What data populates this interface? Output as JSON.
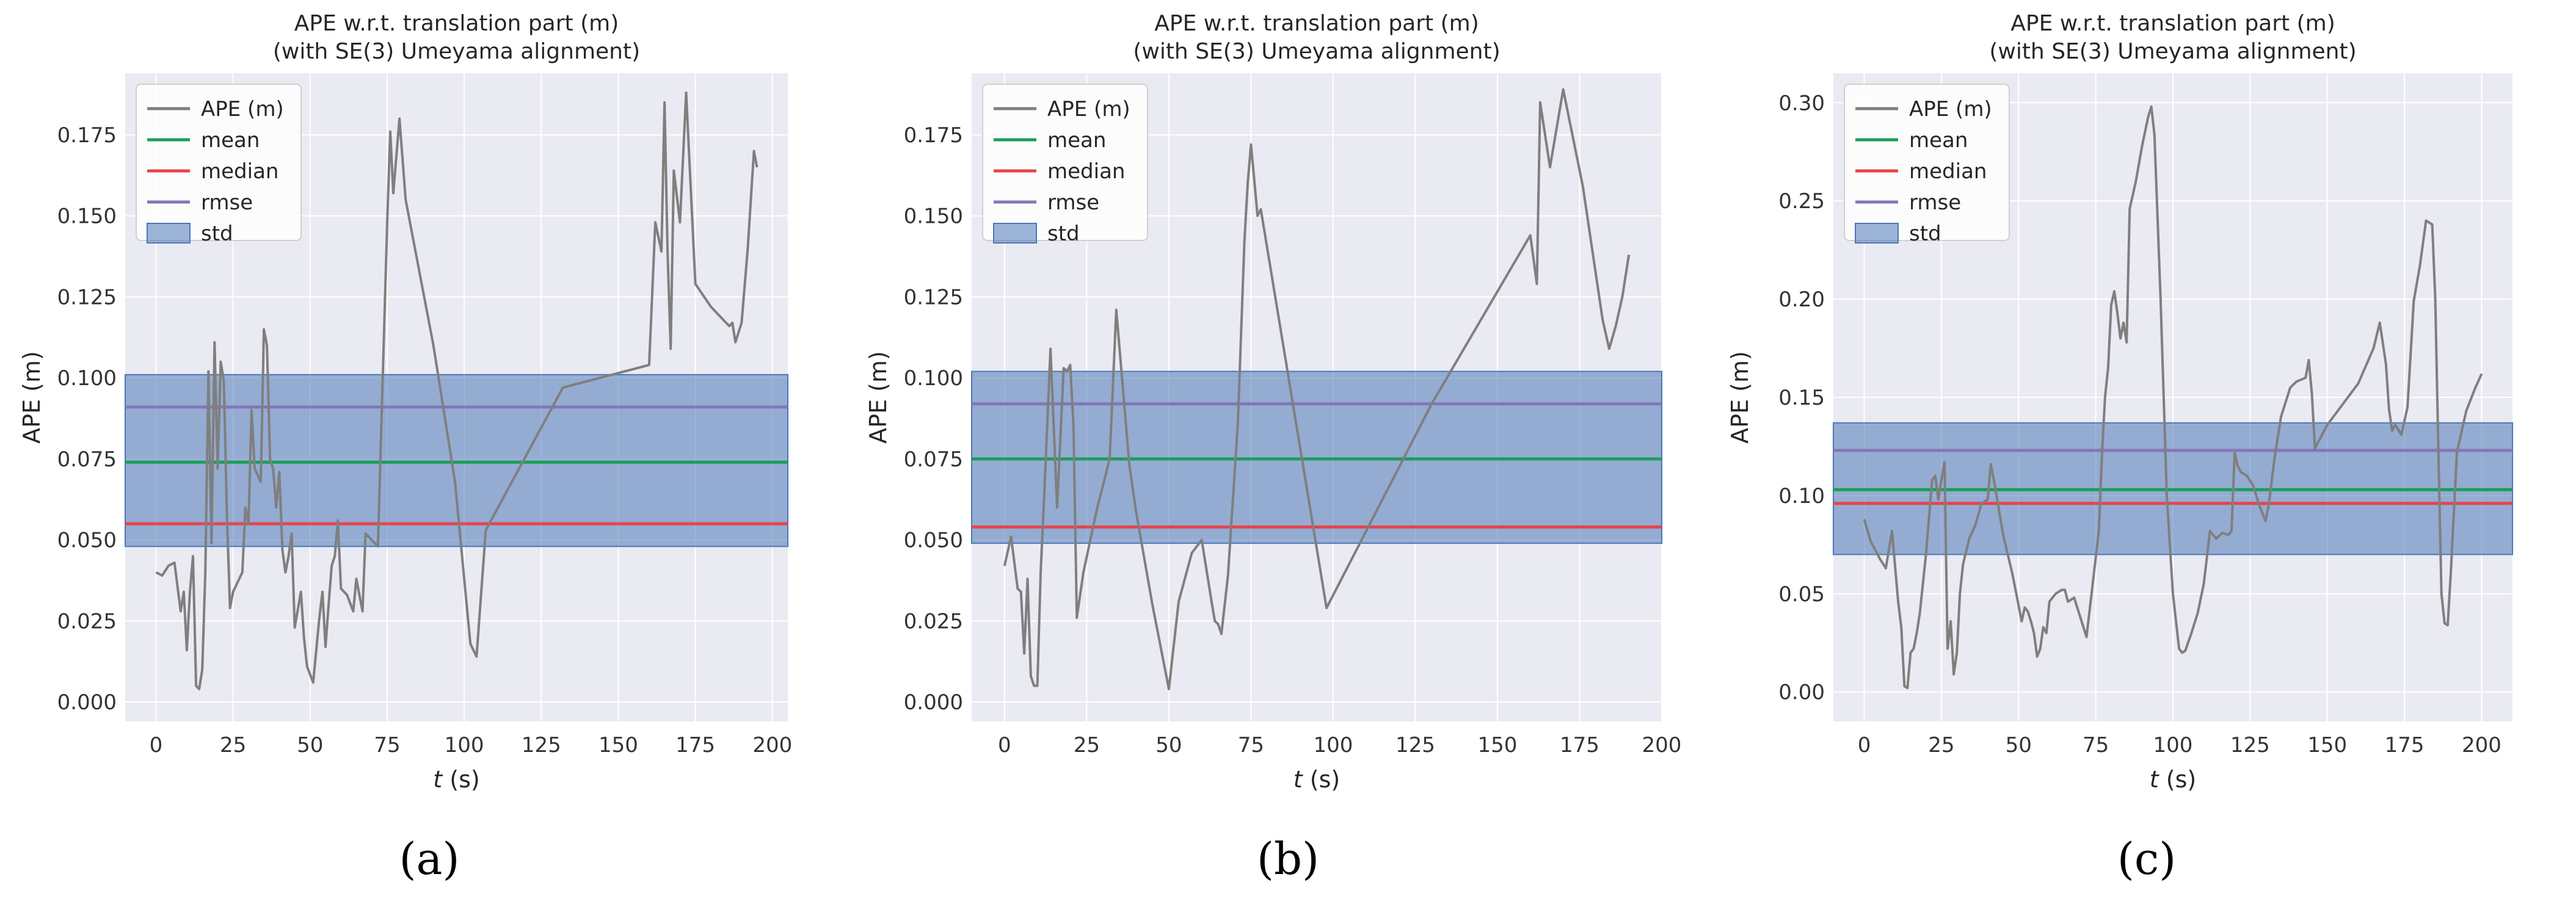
{
  "chart_data": [
    {
      "type": "line",
      "panel_label": "(a)",
      "title": "APE w.r.t. translation part (m)",
      "subtitle": "(with SE(3) Umeyama alignment)",
      "xlabel_italic": "t",
      "xlabel_unit": " (s)",
      "ylabel": "APE (m)",
      "xlim": [
        -10,
        205
      ],
      "ylim": [
        -0.006,
        0.194
      ],
      "xticks": [
        0,
        25,
        50,
        75,
        100,
        125,
        150,
        175,
        200
      ],
      "yticks": [
        0.0,
        0.025,
        0.05,
        0.075,
        0.1,
        0.125,
        0.15,
        0.175
      ],
      "ytick_labels": [
        "0.000",
        "0.025",
        "0.050",
        "0.075",
        "0.100",
        "0.125",
        "0.150",
        "0.175"
      ],
      "legend": [
        "APE (m)",
        "mean",
        "median",
        "rmse",
        "std"
      ],
      "stats": {
        "mean": 0.074,
        "median": 0.055,
        "rmse": 0.091,
        "std_low": 0.048,
        "std_high": 0.101
      },
      "series": [
        {
          "name": "APE (m)",
          "x": [
            0,
            2,
            4,
            6,
            8,
            9,
            10,
            11,
            12,
            13,
            14,
            15,
            16,
            17,
            18,
            19,
            20,
            21,
            22,
            23,
            24,
            25,
            28,
            29,
            30,
            31,
            32,
            34,
            35,
            36,
            37,
            38,
            39,
            40,
            41,
            42,
            43,
            44,
            45,
            47,
            48,
            49,
            51,
            53,
            54,
            55,
            56,
            57,
            58,
            59,
            60,
            62,
            64,
            65,
            66,
            67,
            68,
            72,
            75,
            76,
            77,
            79,
            81,
            90,
            97,
            102,
            104,
            107,
            132,
            160,
            162,
            164,
            165,
            166,
            167,
            168,
            170,
            172,
            175,
            180,
            186,
            187,
            188,
            190,
            192,
            194,
            195
          ],
          "y": [
            0.04,
            0.039,
            0.042,
            0.043,
            0.028,
            0.034,
            0.016,
            0.034,
            0.045,
            0.005,
            0.004,
            0.01,
            0.04,
            0.102,
            0.049,
            0.111,
            0.072,
            0.105,
            0.099,
            0.058,
            0.029,
            0.034,
            0.04,
            0.06,
            0.055,
            0.09,
            0.072,
            0.068,
            0.115,
            0.11,
            0.075,
            0.072,
            0.06,
            0.071,
            0.047,
            0.04,
            0.045,
            0.052,
            0.023,
            0.034,
            0.02,
            0.011,
            0.006,
            0.026,
            0.034,
            0.017,
            0.03,
            0.042,
            0.045,
            0.056,
            0.035,
            0.033,
            0.028,
            0.038,
            0.033,
            0.028,
            0.052,
            0.048,
            0.148,
            0.176,
            0.157,
            0.18,
            0.155,
            0.11,
            0.068,
            0.018,
            0.014,
            0.053,
            0.097,
            0.104,
            0.148,
            0.139,
            0.185,
            0.138,
            0.109,
            0.164,
            0.148,
            0.188,
            0.129,
            0.122,
            0.116,
            0.117,
            0.111,
            0.117,
            0.14,
            0.17,
            0.165
          ]
        }
      ]
    },
    {
      "type": "line",
      "panel_label": "(b)",
      "title": "APE w.r.t. translation part (m)",
      "subtitle": "(with SE(3) Umeyama alignment)",
      "xlabel_italic": "t",
      "xlabel_unit": " (s)",
      "ylabel": "APE (m)",
      "xlim": [
        -10,
        200
      ],
      "ylim": [
        -0.006,
        0.194
      ],
      "xticks": [
        0,
        25,
        50,
        75,
        100,
        125,
        150,
        175,
        200
      ],
      "yticks": [
        0.0,
        0.025,
        0.05,
        0.075,
        0.1,
        0.125,
        0.15,
        0.175
      ],
      "ytick_labels": [
        "0.000",
        "0.025",
        "0.050",
        "0.075",
        "0.100",
        "0.125",
        "0.150",
        "0.175"
      ],
      "legend": [
        "APE (m)",
        "mean",
        "median",
        "rmse",
        "std"
      ],
      "stats": {
        "mean": 0.075,
        "median": 0.054,
        "rmse": 0.092,
        "std_low": 0.049,
        "std_high": 0.102
      },
      "series": [
        {
          "name": "APE (m)",
          "x": [
            0,
            2,
            4,
            5,
            6,
            7,
            8,
            9,
            10,
            11,
            12,
            14,
            16,
            18,
            19,
            20,
            21,
            22,
            24,
            28,
            32,
            34,
            38,
            40,
            45,
            50,
            53,
            57,
            60,
            63,
            64,
            65,
            66,
            68,
            71,
            73,
            74,
            75,
            76,
            77,
            78,
            98,
            130,
            160,
            162,
            163,
            166,
            170,
            176,
            182,
            184,
            186,
            188,
            190
          ],
          "y": [
            0.042,
            0.051,
            0.035,
            0.034,
            0.015,
            0.038,
            0.008,
            0.005,
            0.005,
            0.04,
            0.062,
            0.109,
            0.06,
            0.103,
            0.102,
            0.104,
            0.085,
            0.026,
            0.04,
            0.059,
            0.075,
            0.121,
            0.073,
            0.059,
            0.03,
            0.004,
            0.031,
            0.046,
            0.05,
            0.031,
            0.025,
            0.024,
            0.021,
            0.039,
            0.086,
            0.142,
            0.16,
            0.172,
            0.161,
            0.15,
            0.152,
            0.029,
            0.092,
            0.144,
            0.129,
            0.185,
            0.165,
            0.189,
            0.159,
            0.118,
            0.109,
            0.116,
            0.125,
            0.138
          ]
        }
      ]
    },
    {
      "type": "line",
      "panel_label": "(c)",
      "title": "APE w.r.t. translation part (m)",
      "subtitle": "(with SE(3) Umeyama alignment)",
      "xlabel_italic": "t",
      "xlabel_unit": " (s)",
      "ylabel": "APE (m)",
      "xlim": [
        -10,
        210
      ],
      "ylim": [
        -0.015,
        0.315
      ],
      "xticks": [
        0,
        25,
        50,
        75,
        100,
        125,
        150,
        175,
        200
      ],
      "yticks": [
        0.0,
        0.05,
        0.1,
        0.15,
        0.2,
        0.25,
        0.3
      ],
      "ytick_labels": [
        "0.00",
        "0.05",
        "0.10",
        "0.15",
        "0.20",
        "0.25",
        "0.30"
      ],
      "legend": [
        "APE (m)",
        "mean",
        "median",
        "rmse",
        "std"
      ],
      "stats": {
        "mean": 0.103,
        "median": 0.096,
        "rmse": 0.123,
        "std_low": 0.07,
        "std_high": 0.137
      },
      "series": [
        {
          "name": "APE (m)",
          "x": [
            0,
            2,
            5,
            7,
            9,
            11,
            12,
            13,
            14,
            15,
            16,
            17,
            18,
            20,
            22,
            23,
            24,
            25,
            26,
            27,
            28,
            29,
            30,
            31,
            32,
            34,
            36,
            38,
            40,
            41,
            42,
            45,
            48,
            50,
            51,
            52,
            53,
            54,
            55,
            56,
            57,
            58,
            59,
            60,
            62,
            64,
            65,
            66,
            68,
            70,
            72,
            74,
            76,
            77,
            78,
            79,
            80,
            81,
            82,
            83,
            84,
            85,
            86,
            88,
            90,
            92,
            93,
            94,
            96,
            98,
            100,
            102,
            103,
            104,
            106,
            108,
            110,
            112,
            114,
            116,
            118,
            119,
            120,
            121,
            122,
            124,
            126,
            128,
            130,
            131,
            133,
            135,
            138,
            140,
            143,
            144,
            145,
            146,
            150,
            160,
            165,
            167,
            169,
            170,
            171,
            172,
            174,
            176,
            178,
            180,
            182,
            184,
            185,
            186,
            187,
            188,
            189,
            190,
            192,
            195,
            198,
            200
          ],
          "y": [
            0.088,
            0.077,
            0.068,
            0.063,
            0.082,
            0.046,
            0.033,
            0.003,
            0.002,
            0.02,
            0.022,
            0.03,
            0.04,
            0.07,
            0.108,
            0.11,
            0.098,
            0.108,
            0.117,
            0.022,
            0.036,
            0.009,
            0.02,
            0.05,
            0.065,
            0.078,
            0.085,
            0.096,
            0.098,
            0.116,
            0.108,
            0.08,
            0.06,
            0.044,
            0.036,
            0.043,
            0.041,
            0.036,
            0.03,
            0.018,
            0.022,
            0.033,
            0.03,
            0.046,
            0.05,
            0.052,
            0.052,
            0.046,
            0.048,
            0.038,
            0.028,
            0.055,
            0.082,
            0.12,
            0.15,
            0.165,
            0.197,
            0.204,
            0.193,
            0.18,
            0.188,
            0.178,
            0.246,
            0.26,
            0.278,
            0.293,
            0.298,
            0.284,
            0.2,
            0.1,
            0.05,
            0.022,
            0.02,
            0.021,
            0.03,
            0.04,
            0.055,
            0.082,
            0.078,
            0.081,
            0.08,
            0.082,
            0.122,
            0.115,
            0.112,
            0.11,
            0.105,
            0.095,
            0.087,
            0.095,
            0.12,
            0.14,
            0.155,
            0.158,
            0.16,
            0.169,
            0.152,
            0.124,
            0.136,
            0.157,
            0.175,
            0.188,
            0.167,
            0.144,
            0.133,
            0.136,
            0.131,
            0.145,
            0.199,
            0.217,
            0.24,
            0.238,
            0.2,
            0.122,
            0.05,
            0.035,
            0.034,
            0.06,
            0.122,
            0.143,
            0.155,
            0.162
          ]
        }
      ]
    }
  ],
  "colors": {
    "ape": "#7f7f7f",
    "mean": "#1a9e56",
    "median": "#e8434a",
    "rmse": "#8575b8",
    "std_fill": "#4c78b8",
    "axes_bg": "#eaeaf2",
    "grid": "#ffffff"
  }
}
